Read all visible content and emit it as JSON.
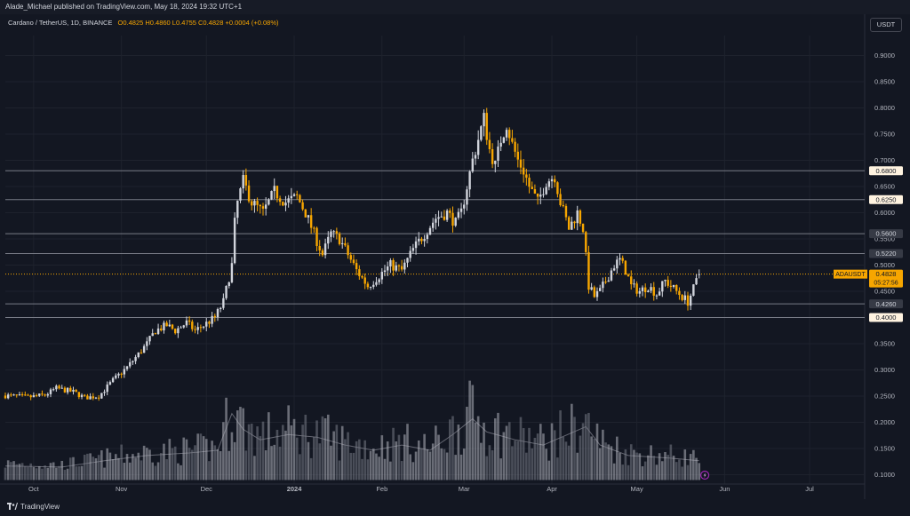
{
  "header": {
    "published": "Alade_Michael published on TradingView.com, May 18, 2024 19:32 UTC+1"
  },
  "legend": {
    "symbol": "Cardano / TetherUS, 1D, BINANCE",
    "ohlc": "O0.4825  H0.4860  L0.4755  C0.4828  +0.0004 (+0.08%)"
  },
  "currency_button": "USDT",
  "footer": {
    "brand": "TradingView"
  },
  "colors": {
    "up": "#d1d4dc",
    "down": "#f7a600",
    "background": "#131722",
    "grid": "#1e222d",
    "level_line": "#787b86",
    "current_line": "#f7a600"
  },
  "chart_data": {
    "type": "candlestick",
    "x_axis": {
      "tick_labels": [
        "Oct",
        "Nov",
        "Dec",
        "2024",
        "Feb",
        "Mar",
        "Apr",
        "May",
        "Jun",
        "Jul"
      ],
      "tick_days": [
        10,
        41,
        71,
        102,
        133,
        162,
        193,
        223,
        254,
        284
      ],
      "range_days": [
        0,
        300
      ]
    },
    "y_axis": {
      "ticks": [
        "0.9000",
        "0.8500",
        "0.8000",
        "0.7500",
        "0.7000",
        "0.6500",
        "0.6000",
        "0.5500",
        "0.5000",
        "0.4500",
        "0.4000",
        "0.3500",
        "0.3000",
        "0.2500",
        "0.2000",
        "0.1500",
        "0.1000"
      ],
      "ylim": [
        0.1,
        0.9
      ]
    },
    "levels": [
      {
        "value": 0.68,
        "label": "0.6800",
        "style": "light"
      },
      {
        "value": 0.625,
        "label": "0.6250",
        "style": "light"
      },
      {
        "value": 0.56,
        "label": "0.5600",
        "style": "dark"
      },
      {
        "value": 0.522,
        "label": "0.5220",
        "style": "dark"
      },
      {
        "value": 0.426,
        "label": "0.4260",
        "style": "dark"
      },
      {
        "value": 0.4,
        "label": "0.4000",
        "style": "light"
      }
    ],
    "current_price": {
      "symbol": "ADAUSDT",
      "value": 0.4828,
      "label": "0.4828",
      "countdown": "05:27:56"
    },
    "price_path": [
      [
        0,
        0.251
      ],
      [
        8,
        0.248
      ],
      [
        14,
        0.252
      ],
      [
        18,
        0.265
      ],
      [
        24,
        0.258
      ],
      [
        28,
        0.247
      ],
      [
        33,
        0.25
      ],
      [
        38,
        0.28
      ],
      [
        43,
        0.305
      ],
      [
        47,
        0.33
      ],
      [
        50,
        0.35
      ],
      [
        53,
        0.375
      ],
      [
        57,
        0.385
      ],
      [
        60,
        0.375
      ],
      [
        64,
        0.39
      ],
      [
        67,
        0.375
      ],
      [
        70,
        0.385
      ],
      [
        74,
        0.4
      ],
      [
        77,
        0.43
      ],
      [
        80,
        0.5
      ],
      [
        81,
        0.58
      ],
      [
        82,
        0.62
      ],
      [
        83,
        0.64
      ],
      [
        84,
        0.66
      ],
      [
        87,
        0.62
      ],
      [
        91,
        0.6
      ],
      [
        95,
        0.64
      ],
      [
        99,
        0.62
      ],
      [
        103,
        0.63
      ],
      [
        106,
        0.6
      ],
      [
        109,
        0.56
      ],
      [
        112,
        0.52
      ],
      [
        115,
        0.56
      ],
      [
        118,
        0.55
      ],
      [
        121,
        0.52
      ],
      [
        124,
        0.49
      ],
      [
        128,
        0.46
      ],
      [
        132,
        0.48
      ],
      [
        136,
        0.5
      ],
      [
        140,
        0.49
      ],
      [
        144,
        0.53
      ],
      [
        148,
        0.56
      ],
      [
        152,
        0.59
      ],
      [
        156,
        0.6
      ],
      [
        159,
        0.58
      ],
      [
        161,
        0.6
      ],
      [
        163,
        0.65
      ],
      [
        165,
        0.7
      ],
      [
        167,
        0.74
      ],
      [
        169,
        0.78
      ],
      [
        171,
        0.72
      ],
      [
        173,
        0.69
      ],
      [
        175,
        0.74
      ],
      [
        177,
        0.77
      ],
      [
        179,
        0.73
      ],
      [
        181,
        0.7
      ],
      [
        183,
        0.68
      ],
      [
        185,
        0.65
      ],
      [
        188,
        0.62
      ],
      [
        191,
        0.66
      ],
      [
        194,
        0.67
      ],
      [
        196,
        0.62
      ],
      [
        199,
        0.57
      ],
      [
        202,
        0.6
      ],
      [
        204,
        0.57
      ],
      [
        206,
        0.46
      ],
      [
        208,
        0.44
      ],
      [
        210,
        0.45
      ],
      [
        213,
        0.48
      ],
      [
        215,
        0.5
      ],
      [
        217,
        0.51
      ],
      [
        219,
        0.49
      ],
      [
        221,
        0.46
      ],
      [
        224,
        0.45
      ],
      [
        227,
        0.46
      ],
      [
        230,
        0.445
      ],
      [
        233,
        0.47
      ],
      [
        236,
        0.455
      ],
      [
        239,
        0.44
      ],
      [
        241,
        0.43
      ],
      [
        243,
        0.455
      ],
      [
        245,
        0.4825
      ]
    ],
    "volume_path": [
      [
        0,
        0.02
      ],
      [
        20,
        0.018
      ],
      [
        35,
        0.03
      ],
      [
        50,
        0.04
      ],
      [
        65,
        0.045
      ],
      [
        75,
        0.05
      ],
      [
        80,
        0.12
      ],
      [
        84,
        0.09
      ],
      [
        90,
        0.07
      ],
      [
        100,
        0.08
      ],
      [
        110,
        0.075
      ],
      [
        120,
        0.06
      ],
      [
        130,
        0.05
      ],
      [
        140,
        0.06
      ],
      [
        150,
        0.05
      ],
      [
        158,
        0.08
      ],
      [
        165,
        0.11
      ],
      [
        170,
        0.085
      ],
      [
        180,
        0.07
      ],
      [
        190,
        0.06
      ],
      [
        205,
        0.095
      ],
      [
        210,
        0.06
      ],
      [
        220,
        0.04
      ],
      [
        235,
        0.035
      ],
      [
        245,
        0.03
      ]
    ],
    "volume_ma_label": ""
  }
}
